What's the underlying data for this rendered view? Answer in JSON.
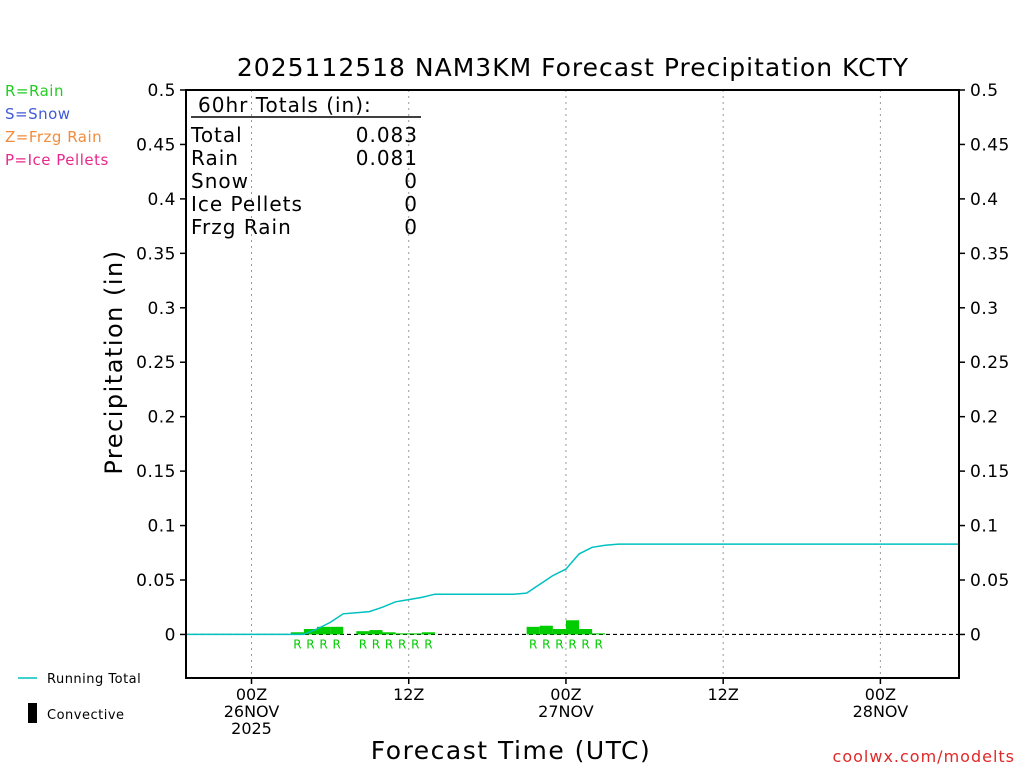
{
  "chart_data": {
    "type": "bar",
    "title": "2025112518 NAM3KM Forecast Precipitation KCTY",
    "xlabel": "Forecast Time (UTC)",
    "ylabel": "Precipitation (in)",
    "ylim": [
      -0.04,
      0.5
    ],
    "xlim": [
      -5,
      54
    ],
    "yticks": [
      "0",
      "0.05",
      "0.1",
      "0.15",
      "0.2",
      "0.25",
      "0.3",
      "0.35",
      "0.4",
      "0.45",
      "0.5"
    ],
    "xticks": [
      {
        "hour": 0,
        "lines": [
          "00Z",
          "26NOV",
          "2025"
        ]
      },
      {
        "hour": 12,
        "lines": [
          "12Z"
        ]
      },
      {
        "hour": 24,
        "lines": [
          "00Z",
          "27NOV"
        ]
      },
      {
        "hour": 36,
        "lines": [
          "12Z"
        ]
      },
      {
        "hour": 48,
        "lines": [
          "00Z",
          "28NOV"
        ]
      }
    ],
    "grid": "dotted vertical at tick times",
    "legend_types": [
      {
        "label": "R=Rain",
        "color": "#22cc22"
      },
      {
        "label": "S=Snow",
        "color": "#3f5ad8"
      },
      {
        "label": "Z=Frzg Rain",
        "color": "#f08c3c"
      },
      {
        "label": "P=Ice Pellets",
        "color": "#e8288c"
      }
    ],
    "legend_lines": [
      {
        "label": "Running Total",
        "color": "#00c0c0"
      },
      {
        "label": "Convective",
        "color": "#000000"
      }
    ],
    "totals": {
      "heading": "60hr Totals (in):",
      "rows": [
        {
          "label": "Total",
          "value": "0.083"
        },
        {
          "label": "Rain",
          "value": "0.081"
        },
        {
          "label": "Snow",
          "value": "0"
        },
        {
          "label": "Ice Pellets",
          "value": "0"
        },
        {
          "label": "Frzg Rain",
          "value": "0"
        }
      ]
    },
    "series": [
      {
        "name": "Hourly Precipitation",
        "type": "bar",
        "color": "#00cc00",
        "x": [
          4,
          5,
          6,
          7,
          9,
          10,
          11,
          12,
          13,
          14,
          22,
          23,
          24,
          25,
          26,
          27
        ],
        "values": [
          0.002,
          0.005,
          0.007,
          0.007,
          0.003,
          0.004,
          0.002,
          0.001,
          0.001,
          0.002,
          0.007,
          0.008,
          0.005,
          0.013,
          0.005,
          0.001
        ],
        "precip_type_labels": [
          "R",
          "R",
          "R",
          "R",
          "R",
          "R",
          "R",
          "R",
          "R",
          "R",
          "R",
          "R",
          "R",
          "R",
          "R",
          "R"
        ]
      },
      {
        "name": "Running Total",
        "type": "line",
        "color": "#00c0c0",
        "x": [
          -5,
          4,
          5,
          6,
          7,
          8,
          9,
          10,
          11,
          12,
          13,
          14,
          15,
          16,
          17,
          18,
          19,
          20,
          21,
          22,
          23,
          24,
          25,
          26,
          27,
          28,
          29,
          30,
          54
        ],
        "values": [
          0,
          0,
          0.005,
          0.011,
          0.019,
          0.02,
          0.021,
          0.025,
          0.03,
          0.032,
          0.034,
          0.037,
          0.037,
          0.037,
          0.037,
          0.037,
          0.037,
          0.037,
          0.038,
          0.046,
          0.054,
          0.06,
          0.074,
          0.08,
          0.082,
          0.083,
          0.083,
          0.083,
          0.083
        ]
      }
    ],
    "footer_url": "coolwx.com/modelts"
  }
}
